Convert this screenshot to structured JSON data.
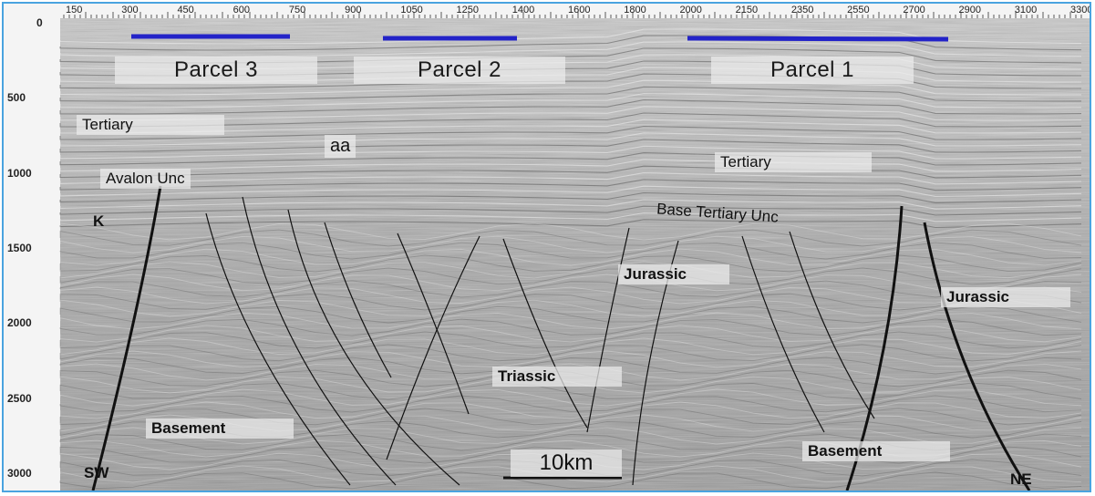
{
  "x_axis_ticks": [
    "150",
    "300",
    "450",
    "600",
    "750",
    "900",
    "1050",
    "1250",
    "1400",
    "1600",
    "1800",
    "2000",
    "2150",
    "2350",
    "2550",
    "2700",
    "2900",
    "3100",
    "3300"
  ],
  "y_axis_ticks": [
    "0",
    "500",
    "1000",
    "1500",
    "2000",
    "2500",
    "3000"
  ],
  "parcels": [
    "Parcel 3",
    "Parcel 2",
    "Parcel 1"
  ],
  "labels": {
    "tertiary_left": "Tertiary",
    "tertiary_right": "Tertiary",
    "aa": "aa",
    "avalon_unc": "Avalon Unc",
    "k": "K",
    "base_tertiary_unc": "Base Tertiary Unc",
    "jurassic_center": "Jurassic",
    "jurassic_right": "Jurassic",
    "triassic": "Triassic",
    "basement_left": "Basement",
    "basement_right": "Basement",
    "sw": "SW",
    "ne": "NE",
    "scale": "10km"
  },
  "colors": {
    "parcel_bar": "#2323c8",
    "frame": "#4aa3df"
  }
}
